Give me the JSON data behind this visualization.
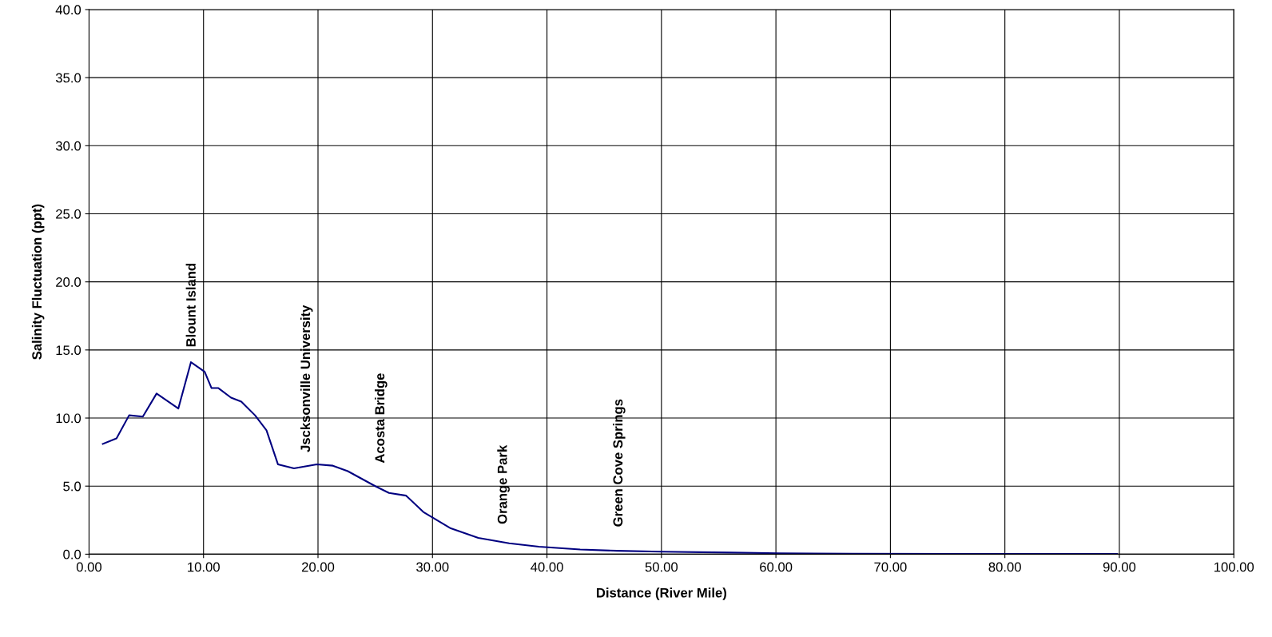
{
  "chart_data": {
    "type": "line",
    "xlabel": "Distance (River Mile)",
    "ylabel": "Salinity Fluctuation (ppt)",
    "series": [
      {
        "color": "#000080",
        "x": [
          1.2,
          2.4,
          3.5,
          4.7,
          5.9,
          7.8,
          8.9,
          10.1,
          10.7,
          11.3,
          12.4,
          13.3,
          14.5,
          15.5,
          16.5,
          17.9,
          19.9,
          21.3,
          22.6,
          25.0,
          26.2,
          27.7,
          29.2,
          31.6,
          34.0,
          36.7,
          39.3,
          42.9,
          46.1,
          50.0,
          56.0,
          60.3,
          66.7,
          77.0,
          89.8
        ],
        "values": [
          8.1,
          8.5,
          10.2,
          10.1,
          11.8,
          10.7,
          14.1,
          13.4,
          12.2,
          12.2,
          11.5,
          11.2,
          10.2,
          9.1,
          6.6,
          6.3,
          6.6,
          6.5,
          6.1,
          5.0,
          4.5,
          4.3,
          3.1,
          1.9,
          1.2,
          0.8,
          0.55,
          0.35,
          0.25,
          0.18,
          0.12,
          0.07,
          0.03,
          0.02,
          0.02
        ]
      }
    ],
    "annotations": [
      "Blount Island",
      "Jscksonville University",
      "Acosta Bridge",
      "Orange Park",
      "Green Cove Springs"
    ],
    "xlim": [
      0,
      100
    ],
    "xticks": [
      {
        "value": 0,
        "label": "0.00"
      },
      {
        "value": 10,
        "label": "10.00"
      },
      {
        "value": 20,
        "label": "20.00"
      },
      {
        "value": 30,
        "label": "30.00"
      },
      {
        "value": 40,
        "label": "40.00"
      },
      {
        "value": 50,
        "label": "50.00"
      },
      {
        "value": 60,
        "label": "60.00"
      },
      {
        "value": 70,
        "label": "70.00"
      },
      {
        "value": 80,
        "label": "80.00"
      },
      {
        "value": 90,
        "label": "90.00"
      },
      {
        "value": 100,
        "label": "100.00"
      }
    ],
    "ylim": [
      0,
      40
    ],
    "yticks": [
      {
        "value": 0,
        "label": "0.0"
      },
      {
        "value": 5,
        "label": "5.0"
      },
      {
        "value": 10,
        "label": "10.0"
      },
      {
        "value": 15,
        "label": "15.0"
      },
      {
        "value": 20,
        "label": "20.0"
      },
      {
        "value": 25,
        "label": "25.0"
      },
      {
        "value": 30,
        "label": "30.0"
      },
      {
        "value": 35,
        "label": "35.0"
      },
      {
        "value": 40,
        "label": "40.0"
      }
    ],
    "grid": true,
    "marker": "none",
    "line_style": "solid"
  }
}
